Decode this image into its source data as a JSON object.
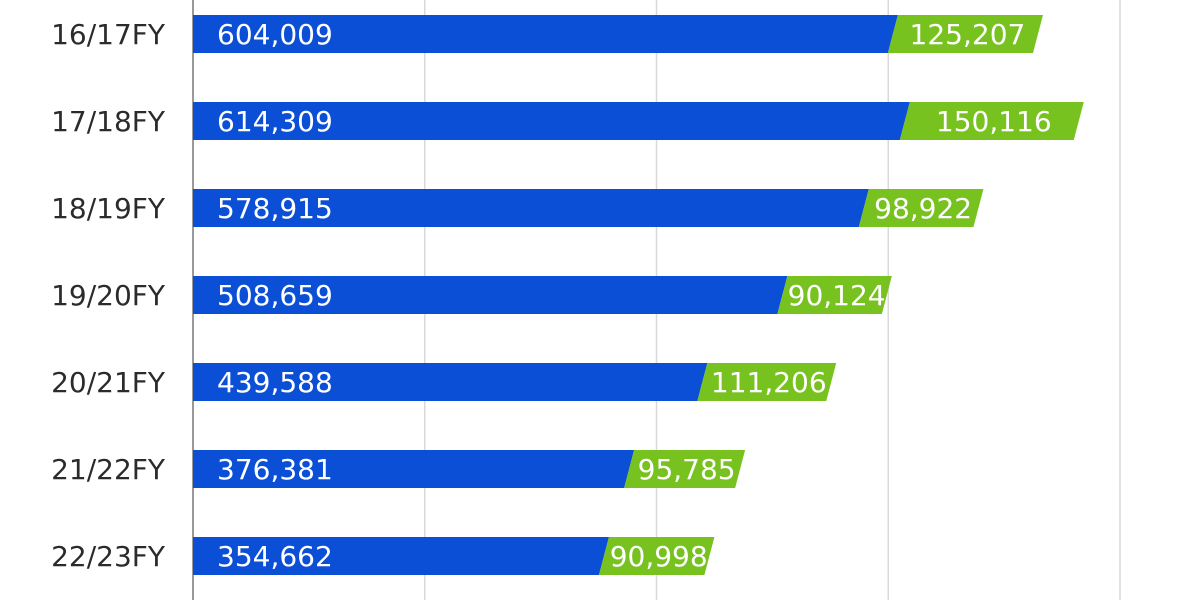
{
  "chart_data": {
    "type": "bar",
    "orientation": "horizontal",
    "stacked": true,
    "categories": [
      "16/17FY",
      "17/18FY",
      "18/19FY",
      "19/20FY",
      "20/21FY",
      "21/22FY",
      "22/23FY"
    ],
    "series": [
      {
        "color": "#0a4fd6",
        "values": [
          604009,
          614309,
          578915,
          508659,
          439588,
          376381,
          354662
        ],
        "labels": [
          "604,009",
          "614,309",
          "578,915",
          "508,659",
          "439,588",
          "376,381",
          "354,662"
        ]
      },
      {
        "color": "#77c21f",
        "values": [
          125207,
          150116,
          98922,
          90124,
          111206,
          95785,
          90998
        ],
        "labels": [
          "125,207",
          "150,116",
          "98,922",
          "90,124",
          "111,206",
          "95,785",
          "90,998"
        ]
      }
    ],
    "xlim": [
      0,
      800000
    ],
    "grid": true,
    "gridline_color": "#d9d9d9"
  }
}
